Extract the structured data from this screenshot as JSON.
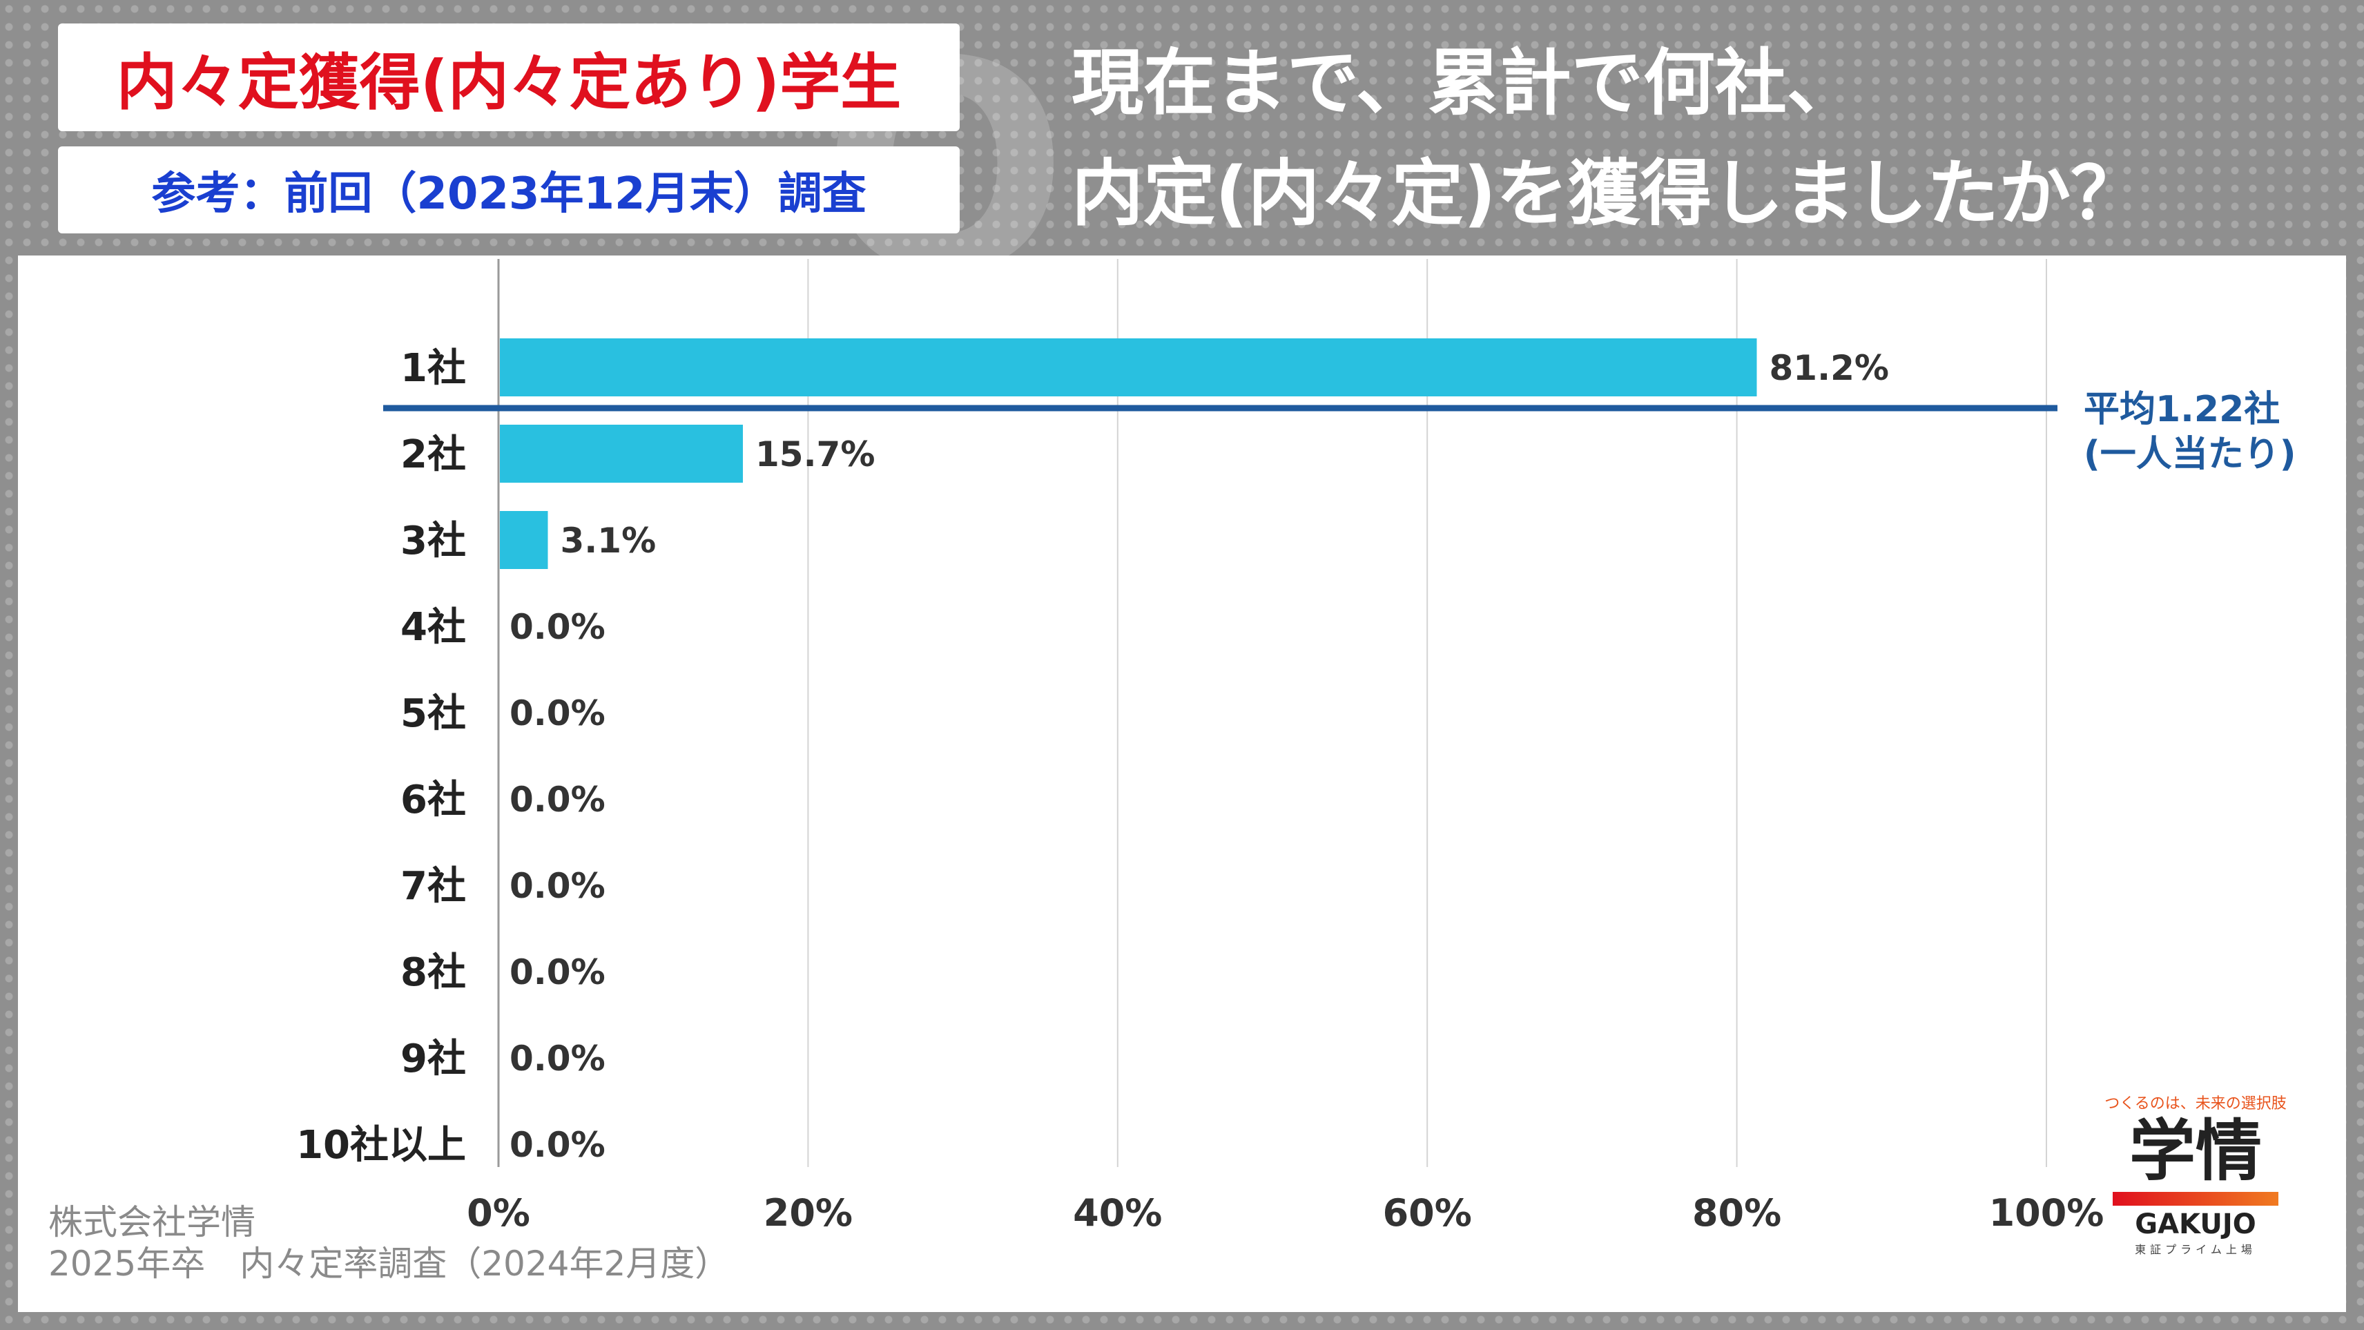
{
  "tags": {
    "main": "内々定獲得(内々定あり)学生",
    "reference": "参考：前回（2023年12月末）調査"
  },
  "question": {
    "line1": "現在まで、累計で何社、",
    "line2": "内定(内々定)を獲得しましたか？"
  },
  "chart_data": {
    "type": "bar",
    "orientation": "horizontal",
    "categories": [
      "1社",
      "2社",
      "3社",
      "4社",
      "5社",
      "6社",
      "7社",
      "8社",
      "9社",
      "10社以上"
    ],
    "values": [
      81.2,
      15.7,
      3.1,
      0.0,
      0.0,
      0.0,
      0.0,
      0.0,
      0.0,
      0.0
    ],
    "value_labels": [
      "81.2%",
      "15.7%",
      "3.1%",
      "0.0%",
      "0.0%",
      "0.0%",
      "0.0%",
      "0.0%",
      "0.0%",
      "0.0%"
    ],
    "xlim": [
      0,
      100
    ],
    "xticks": [
      "0%",
      "20%",
      "40%",
      "60%",
      "80%",
      "100%"
    ],
    "grid": true,
    "bar_color": "#29c0e0",
    "average": {
      "line1": "平均1.22社",
      "line2": "(一人当たり)",
      "color": "#1f5a9e"
    }
  },
  "footer": {
    "company": "株式会社学情",
    "survey": "2025年卒　内々定率調査（2024年2月度）"
  },
  "logo": {
    "tagline": "つくるのは、未来の選択肢",
    "mark": "学情",
    "brand": "GAKUJO",
    "sub": "東証プライム上場"
  }
}
